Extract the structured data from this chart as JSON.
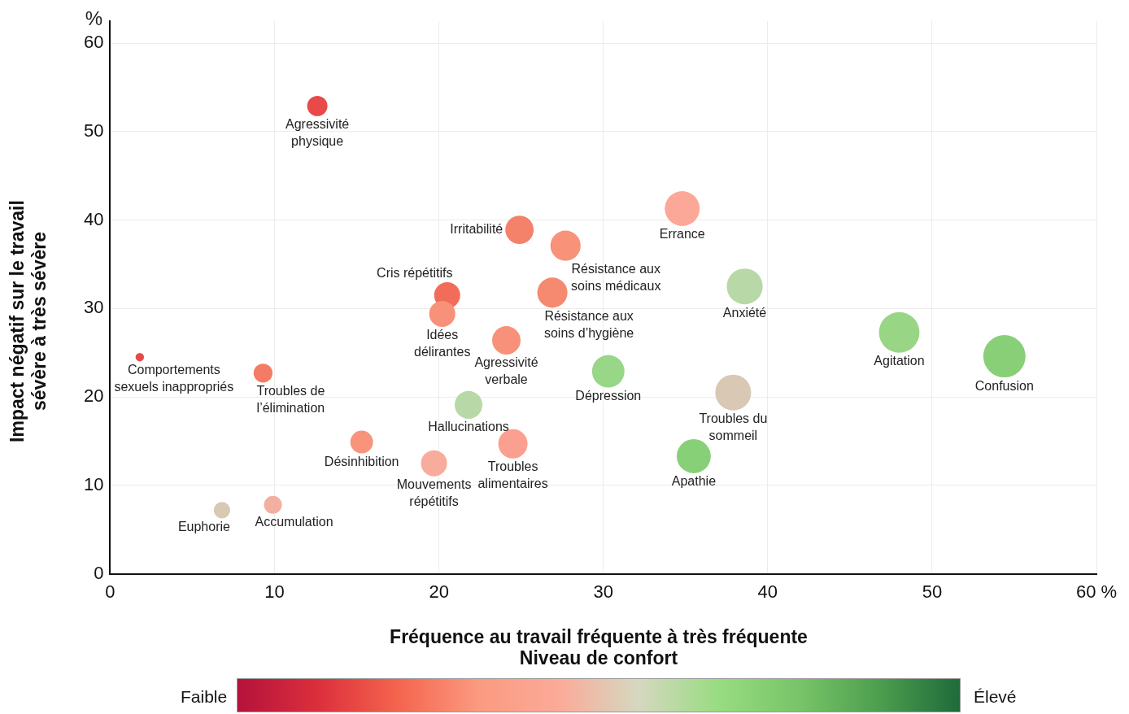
{
  "chart_data": {
    "type": "bubble",
    "xlabel": "Fréquence au travail fréquente à très fréquente",
    "ylabel": "Impact négatif sur le travail sévère à très sévère",
    "clabel": "Niveau de confort",
    "clim": [
      0,
      1
    ],
    "cticks": [
      {
        "value": 0,
        "label": "Faible"
      },
      {
        "value": 1,
        "label": "Élevé"
      }
    ],
    "xlim": [
      0,
      60
    ],
    "ylim": [
      0,
      62.5
    ],
    "xticks": [
      0,
      10,
      20,
      30,
      40,
      50,
      {
        "value": 60,
        "label": "60 %"
      }
    ],
    "yticks": [
      0,
      10,
      20,
      30,
      40,
      50,
      60
    ],
    "grid": true,
    "legend": false,
    "x": [
      12.6,
      24.9,
      27.7,
      34.8,
      20.5,
      20.2,
      26.9,
      38.6,
      24.1,
      48.0,
      54.4,
      30.3,
      37.9,
      1.8,
      9.3,
      21.8,
      15.3,
      24.5,
      19.7,
      35.5,
      6.8,
      9.9
    ],
    "values": [
      52.9,
      38.9,
      37.1,
      41.3,
      31.5,
      29.4,
      31.8,
      32.5,
      26.4,
      27.3,
      24.6,
      22.9,
      20.5,
      24.5,
      22.7,
      19.1,
      14.9,
      14.7,
      12.5,
      13.3,
      7.2,
      7.8
    ],
    "sizes": [
      0.23,
      0.45,
      0.51,
      0.68,
      0.38,
      0.38,
      0.51,
      0.72,
      0.45,
      0.92,
      1,
      0.59,
      0.72,
      0.04,
      0.2,
      0.43,
      0.29,
      0.48,
      0.38,
      0.65,
      0.15,
      0.18
    ],
    "colors": [
      "#e84a4a",
      "#f4826a",
      "#f89278",
      "#fba898",
      "#f26c5a",
      "#f8917a",
      "#f58a70",
      "#b8d8a8",
      "#f8917a",
      "#98d686",
      "#88cf78",
      "#98d688",
      "#d8c8b4",
      "#e84a4a",
      "#f47c64",
      "#b8d8a8",
      "#f8947c",
      "#fba090",
      "#f8ad9c",
      "#88d078",
      "#d8c8b4",
      "#f3b0a0"
    ],
    "annotations": [
      "%",
      {
        "text": "Agressivité physique",
        "x": 12.6,
        "y": 52.9
      },
      {
        "text": "Irritabilité",
        "x": 24.9,
        "y": 38.9
      },
      {
        "text": "Résistance aux soins médicaux",
        "x": 27.7,
        "y": 37.1
      },
      {
        "text": "Errance",
        "x": 34.8,
        "y": 41.3
      },
      {
        "text": "Cris répétitifs",
        "x": 20.5,
        "y": 31.5
      },
      {
        "text": "Idées délirantes",
        "x": 20.2,
        "y": 29.4
      },
      {
        "text": "Résistance aux soins d’hygiène",
        "x": 26.9,
        "y": 31.8
      },
      {
        "text": "Anxiété",
        "x": 38.6,
        "y": 32.5
      },
      {
        "text": "Agressivité verbale",
        "x": 24.1,
        "y": 26.4
      },
      {
        "text": "Agitation",
        "x": 48.0,
        "y": 27.3
      },
      {
        "text": "Confusion",
        "x": 54.4,
        "y": 24.6
      },
      {
        "text": "Dépression",
        "x": 30.3,
        "y": 22.9
      },
      {
        "text": "Troubles du sommeil",
        "x": 37.9,
        "y": 20.5
      },
      {
        "text": "Comportements sexuels inappropriés",
        "x": 1.8,
        "y": 24.5
      },
      {
        "text": "Troubles de l’élimination",
        "x": 9.3,
        "y": 22.7
      },
      {
        "text": "Hallucinations",
        "x": 21.8,
        "y": 19.1
      },
      {
        "text": "Désinhibition",
        "x": 15.3,
        "y": 14.9
      },
      {
        "text": "Troubles alimentaires",
        "x": 24.5,
        "y": 14.7
      },
      {
        "text": "Mouvements répétitifs",
        "x": 19.7,
        "y": 12.5
      },
      {
        "text": "Apathie",
        "x": 35.5,
        "y": 13.3
      },
      {
        "text": "Euphorie",
        "x": 6.8,
        "y": 7.2
      },
      {
        "text": "Accumulation",
        "x": 9.9,
        "y": 7.8
      }
    ]
  }
}
